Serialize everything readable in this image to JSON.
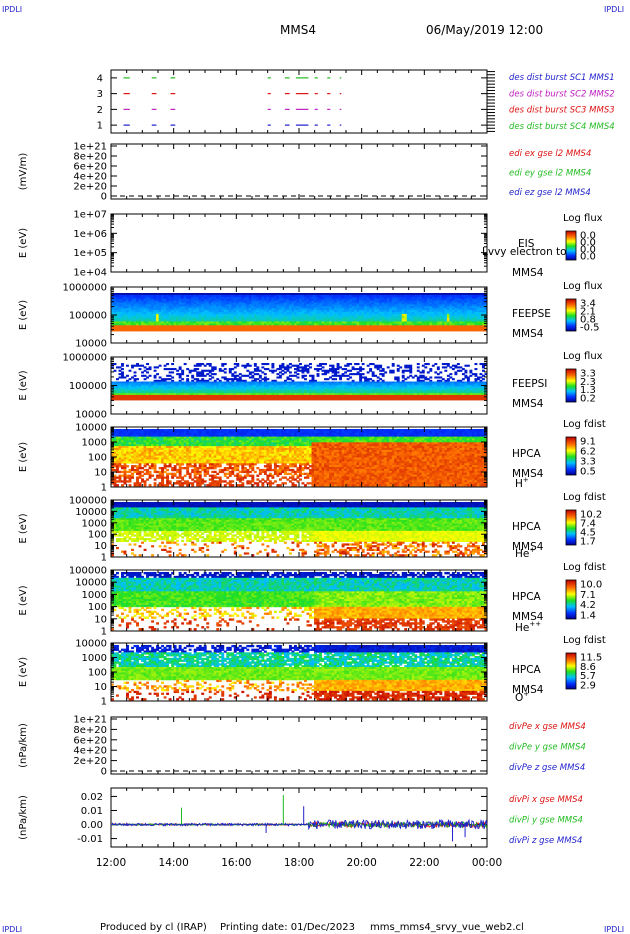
{
  "header": {
    "corner": "IPDLI",
    "title": "MMS4",
    "date": "06/May/2019 12:00"
  },
  "footer": {
    "produced_by": "Produced by cl (IRAP)",
    "printing_date": "Printing date: 01/Dec/2023",
    "file": "mms_mms4_srvy_vue_web2.cl"
  },
  "x_axis": {
    "ticks": [
      "12:00",
      "14:00",
      "16:00",
      "18:00",
      "20:00",
      "22:00",
      "00:00"
    ],
    "range_hours": [
      12,
      24
    ]
  },
  "colors": {
    "blue": "#1f1fcc",
    "magenta": "#c020c0",
    "red": "#dd1111",
    "green": "#22bb22",
    "black": "#000000"
  },
  "chart_data": [
    {
      "type": "line",
      "id": "burst",
      "yticks": [
        "4",
        "3",
        "2",
        "1"
      ],
      "ylim": [
        0.5,
        4.5
      ],
      "legend": [
        {
          "text": "des dist burst SC1 MMS1",
          "color": "blue"
        },
        {
          "text": "des dist burst SC2 MMS2",
          "color": "magenta"
        },
        {
          "text": "des dist burst SC3 MMS3",
          "color": "red"
        },
        {
          "text": "des dist burst SC4 MMS4",
          "color": "green"
        }
      ],
      "series": [
        {
          "name": "des dist burst SC4 MMS4",
          "level": 4,
          "color": "green",
          "segments": [
            [
              12.4,
              12.6
            ],
            [
              13.3,
              13.45
            ],
            [
              13.9,
              14.05
            ],
            [
              17.0,
              17.1
            ],
            [
              17.55,
              17.7
            ],
            [
              17.9,
              18.3
            ],
            [
              18.5,
              18.6
            ],
            [
              18.9,
              19.0
            ],
            [
              19.3,
              19.35
            ]
          ]
        },
        {
          "name": "des dist burst SC3 MMS3",
          "level": 3,
          "color": "red",
          "segments": [
            [
              12.4,
              12.6
            ],
            [
              13.3,
              13.45
            ],
            [
              13.9,
              14.05
            ],
            [
              17.0,
              17.1
            ],
            [
              17.55,
              17.7
            ],
            [
              17.9,
              18.3
            ],
            [
              18.5,
              18.6
            ],
            [
              18.9,
              19.0
            ],
            [
              19.3,
              19.35
            ]
          ]
        },
        {
          "name": "des dist burst SC2 MMS2",
          "level": 2,
          "color": "magenta",
          "segments": [
            [
              12.4,
              12.6
            ],
            [
              13.3,
              13.45
            ],
            [
              13.9,
              14.05
            ],
            [
              17.0,
              17.1
            ],
            [
              17.55,
              17.7
            ],
            [
              17.9,
              18.3
            ],
            [
              18.5,
              18.6
            ],
            [
              18.9,
              19.0
            ],
            [
              19.3,
              19.35
            ]
          ]
        },
        {
          "name": "des dist burst SC1 MMS1",
          "level": 1,
          "color": "blue",
          "segments": [
            [
              12.4,
              12.6
            ],
            [
              13.3,
              13.45
            ],
            [
              13.9,
              14.05
            ],
            [
              17.0,
              17.1
            ],
            [
              17.55,
              17.7
            ],
            [
              17.9,
              18.3
            ],
            [
              18.5,
              18.6
            ],
            [
              18.9,
              19.0
            ],
            [
              19.3,
              19.35
            ]
          ]
        }
      ]
    },
    {
      "type": "line",
      "id": "edi",
      "ylabel": "(mV/m)",
      "yticks": [
        "1e+21",
        "8e+20",
        "6e+20",
        "4e+20",
        "2e+20",
        "0"
      ],
      "ylim": [
        0,
        1e+21
      ],
      "legend": [
        {
          "text": "edi ex gse l2 MMS4",
          "color": "red"
        },
        {
          "text": "edi ey gse l2 MMS4",
          "color": "green"
        },
        {
          "text": "edi ez gse l2 MMS4",
          "color": "blue"
        }
      ]
    },
    {
      "type": "heatmap",
      "id": "eis",
      "ylabel": "E (eV)",
      "yticks": [
        "1e+07",
        "1e+06",
        "1e+05",
        "1e+04"
      ],
      "ylim": [
        10000,
        10000000
      ],
      "label": [
        "EIS",
        "MMS4"
      ],
      "overlay_text": "Lvvy electron to",
      "colorbar": {
        "title": "Log flux",
        "ticks": [
          "0.0",
          "0.0",
          "0.0",
          "0.0"
        ]
      }
    },
    {
      "type": "heatmap",
      "id": "feepse",
      "ylabel": "E (eV)",
      "yticks": [
        "1000000",
        "100000",
        "10000"
      ],
      "ylim": [
        10000,
        1000000
      ],
      "label": [
        "FEEPSE",
        "MMS4"
      ],
      "colorbar": {
        "title": "Log flux",
        "ticks": [
          "3.4",
          "2.1",
          "0.8",
          "-0.5"
        ]
      }
    },
    {
      "type": "heatmap",
      "id": "feepsi",
      "ylabel": "E (eV)",
      "yticks": [
        "1000000",
        "100000",
        "10000"
      ],
      "ylim": [
        10000,
        1000000
      ],
      "label": [
        "FEEPSI",
        "MMS4"
      ],
      "colorbar": {
        "title": "Log flux",
        "ticks": [
          "3.3",
          "2.3",
          "1.3",
          "0.2"
        ]
      }
    },
    {
      "type": "heatmap",
      "id": "hpca_h",
      "ylabel": "E (eV)",
      "yticks": [
        "10000",
        "1000",
        "100",
        "10",
        "1"
      ],
      "ylim": [
        1,
        30000
      ],
      "label": [
        "HPCA",
        "MMS4"
      ],
      "species": "H",
      "charge": "+",
      "colorbar": {
        "title": "Log fdist",
        "ticks": [
          "9.1",
          "6.2",
          "3.3",
          "0.5"
        ]
      }
    },
    {
      "type": "heatmap",
      "id": "hpca_he",
      "ylabel": "E (eV)",
      "yticks": [
        "100000",
        "10000",
        "1000",
        "100",
        "10",
        "1"
      ],
      "ylim": [
        1,
        100000
      ],
      "label": [
        "HPCA",
        "MMS4"
      ],
      "species": "He",
      "charge": "+",
      "colorbar": {
        "title": "Log fdist",
        "ticks": [
          "10.2",
          "7.4",
          "4.5",
          "1.7"
        ]
      }
    },
    {
      "type": "heatmap",
      "id": "hpca_hepp",
      "ylabel": "E (eV)",
      "yticks": [
        "100000",
        "10000",
        "1000",
        "100",
        "10",
        "1"
      ],
      "ylim": [
        1,
        100000
      ],
      "label": [
        "HPCA",
        "MMS4"
      ],
      "species": "He",
      "charge": "++",
      "colorbar": {
        "title": "Log fdist",
        "ticks": [
          "10.0",
          "7.1",
          "4.2",
          "1.4"
        ]
      }
    },
    {
      "type": "heatmap",
      "id": "hpca_o",
      "ylabel": "E (eV)",
      "yticks": [
        "10000",
        "1000",
        "100",
        "10",
        "1"
      ],
      "ylim": [
        1,
        30000
      ],
      "label": [
        "HPCA",
        "MMS4"
      ],
      "species": "O",
      "charge": "+",
      "colorbar": {
        "title": "Log fdist",
        "ticks": [
          "11.5",
          "8.6",
          "5.7",
          "2.9"
        ]
      }
    },
    {
      "type": "line",
      "id": "divpe",
      "ylabel": "(nPa/km)",
      "yticks": [
        "1e+21",
        "8e+20",
        "6e+20",
        "4e+20",
        "2e+20",
        "0"
      ],
      "ylim": [
        0,
        1e+21
      ],
      "legend": [
        {
          "text": "divPe x gse MMS4",
          "color": "red"
        },
        {
          "text": "divPe y gse MMS4",
          "color": "green"
        },
        {
          "text": "divPe z gse MMS4",
          "color": "blue"
        }
      ]
    },
    {
      "type": "line",
      "id": "divpi",
      "ylabel": "(nPa/km)",
      "yticks": [
        "0.02",
        "0.01",
        "0.00",
        "-0.01"
      ],
      "ylim": [
        -0.016,
        0.026
      ],
      "legend": [
        {
          "text": "divPi x gse MMS4",
          "color": "red"
        },
        {
          "text": "divPi y gse MMS4",
          "color": "green"
        },
        {
          "text": "divPi z gse MMS4",
          "color": "blue"
        }
      ],
      "spikes": [
        {
          "t": 14.25,
          "v": 0.012,
          "color": "green"
        },
        {
          "t": 17.5,
          "v": 0.021,
          "color": "green"
        },
        {
          "t": 18.15,
          "v": 0.013,
          "color": "blue"
        },
        {
          "t": 16.95,
          "v": -0.006,
          "color": "blue"
        },
        {
          "t": 22.9,
          "v": -0.012,
          "color": "blue"
        },
        {
          "t": 23.3,
          "v": -0.009,
          "color": "blue"
        }
      ]
    }
  ]
}
